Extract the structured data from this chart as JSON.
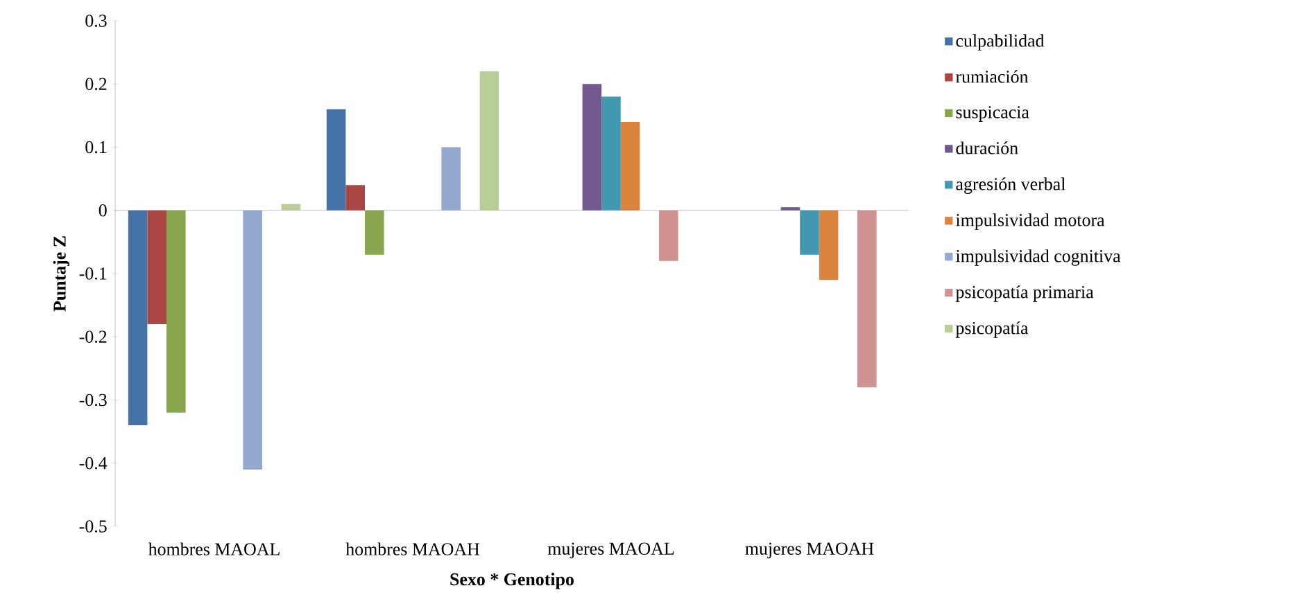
{
  "chart_data": {
    "type": "bar",
    "xlabel": "Sexo * Genotipo",
    "ylabel": "Puntaje Z",
    "categories": [
      "hombres MAOAL",
      "hombres MAOAH",
      "mujeres MAOAL",
      "mujeres MAOAH"
    ],
    "series": [
      {
        "name": "culpabilidad",
        "color": "#4572a7",
        "values": [
          -0.34,
          0.16,
          0,
          0
        ]
      },
      {
        "name": "rumiación",
        "color": "#aa4643",
        "values": [
          -0.18,
          0.04,
          0,
          0
        ]
      },
      {
        "name": "suspicacia",
        "color": "#89a54e",
        "values": [
          -0.32,
          -0.07,
          0,
          0
        ]
      },
      {
        "name": "duración",
        "color": "#71588f",
        "values": [
          0,
          0,
          0.2,
          0.005
        ]
      },
      {
        "name": "agresión verbal",
        "color": "#4198af",
        "values": [
          0,
          0,
          0.18,
          -0.07
        ]
      },
      {
        "name": "impulsividad motora",
        "color": "#db843d",
        "values": [
          0,
          0,
          0.14,
          -0.11
        ]
      },
      {
        "name": "impulsividad cognitiva",
        "color": "#93a9cf",
        "values": [
          -0.41,
          0.1,
          0,
          0
        ]
      },
      {
        "name": "psicopatía primaria",
        "color": "#d19392",
        "values": [
          0,
          0,
          -0.08,
          -0.28
        ]
      },
      {
        "name": "psicopatía",
        "color": "#b9cd96",
        "values": [
          0.01,
          0.22,
          0,
          0
        ]
      }
    ],
    "ylim": [
      -0.5,
      0.3
    ],
    "yticks": [
      -0.5,
      -0.4,
      -0.3,
      -0.2,
      -0.1,
      0,
      0.1,
      0.2,
      0.3
    ],
    "legend": "right"
  }
}
